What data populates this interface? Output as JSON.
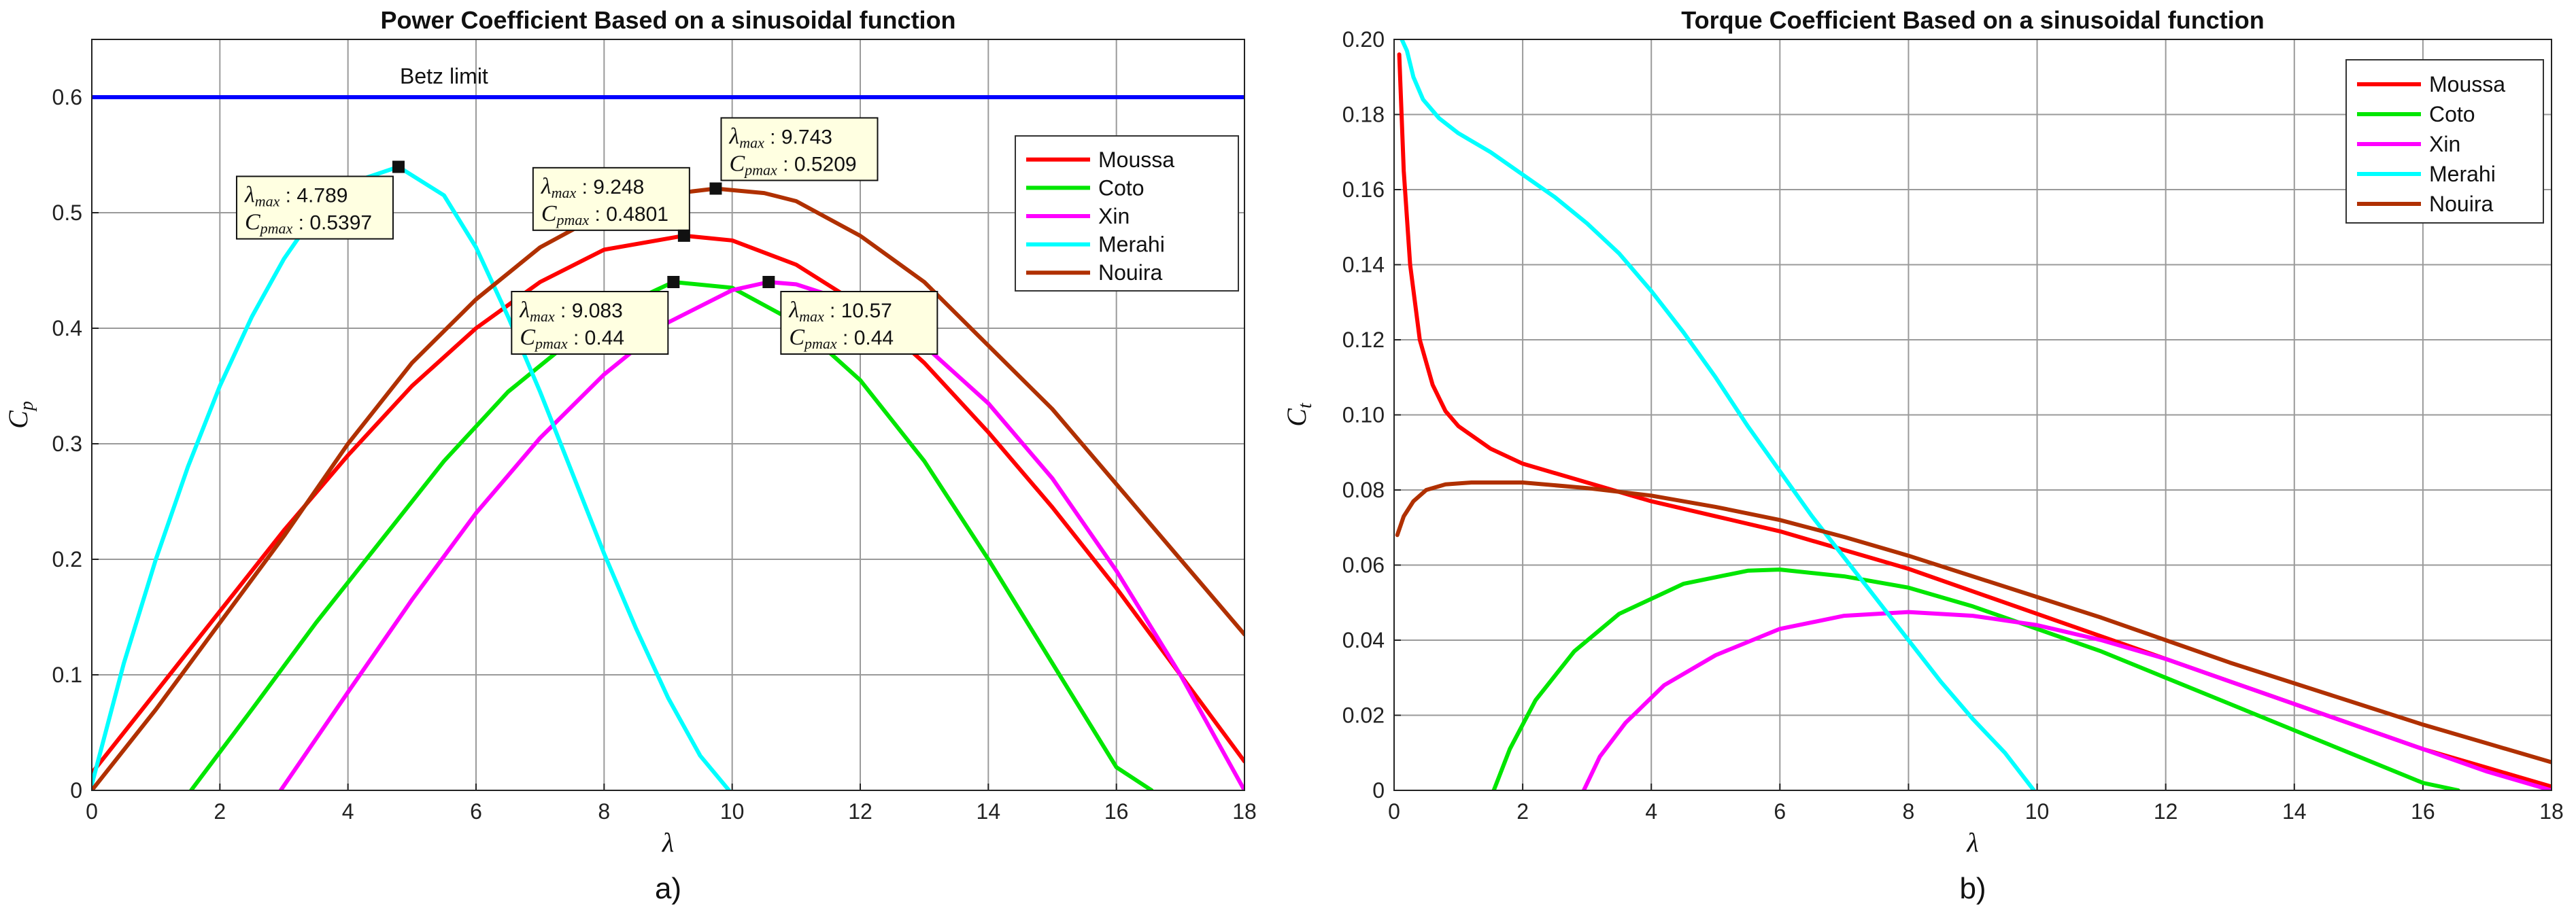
{
  "chart_data": [
    {
      "type": "line",
      "title": "Power Coefficient Based on a sinusoidal function",
      "xlabel": "λ",
      "ylabel": "C_p",
      "ylabel_main": "C",
      "ylabel_sub": "p",
      "panel_label": "a)",
      "xlim": [
        0,
        18
      ],
      "ylim": [
        0,
        0.65
      ],
      "xticks": [
        0,
        2,
        4,
        6,
        8,
        10,
        12,
        14,
        16,
        18
      ],
      "xtick_labels": [
        "0",
        "2",
        "4",
        "6",
        "8",
        "10",
        "12",
        "14",
        "16",
        "18"
      ],
      "yticks": [
        0,
        0.1,
        0.2,
        0.3,
        0.4,
        0.5,
        0.6
      ],
      "ytick_labels": [
        "0",
        "0.1",
        "0.2",
        "0.3",
        "0.4",
        "0.5",
        "0.6"
      ],
      "grid": true,
      "legend_position": "top-right",
      "reference_line": {
        "y": 0.6,
        "label": "Betz limit",
        "color": "#0000ff"
      },
      "series": [
        {
          "name": "Moussa",
          "color": "#ff0000",
          "x": [
            0,
            1,
            2,
            3,
            4,
            5,
            6,
            7,
            8,
            9.248,
            10,
            11,
            12,
            13,
            14,
            15,
            16,
            17,
            18
          ],
          "y": [
            0.015,
            0.085,
            0.155,
            0.225,
            0.29,
            0.35,
            0.4,
            0.44,
            0.468,
            0.4801,
            0.476,
            0.455,
            0.42,
            0.37,
            0.31,
            0.245,
            0.175,
            0.1,
            0.025
          ]
        },
        {
          "name": "Coto",
          "color": "#00e600",
          "x": [
            1.55,
            2.5,
            3.5,
            4.5,
            5.5,
            6.5,
            7.5,
            8.5,
            9.083,
            10,
            11,
            12,
            13,
            14,
            15,
            16,
            16.55
          ],
          "y": [
            0,
            0.07,
            0.145,
            0.215,
            0.285,
            0.345,
            0.39,
            0.425,
            0.44,
            0.435,
            0.405,
            0.355,
            0.285,
            0.2,
            0.11,
            0.02,
            0
          ]
        },
        {
          "name": "Xin",
          "color": "#ff00ff",
          "x": [
            2.95,
            4,
            5,
            6,
            7,
            8,
            9,
            10,
            10.57,
            11,
            12,
            13,
            14,
            15,
            16,
            17,
            18
          ],
          "y": [
            0,
            0.085,
            0.165,
            0.24,
            0.305,
            0.36,
            0.405,
            0.433,
            0.44,
            0.438,
            0.42,
            0.385,
            0.335,
            0.27,
            0.19,
            0.1,
            0
          ]
        },
        {
          "name": "Merahi",
          "color": "#00ffff",
          "x": [
            0,
            0.5,
            1,
            1.5,
            2,
            2.5,
            3,
            3.5,
            4,
            4.789,
            5.5,
            6,
            6.5,
            7,
            7.5,
            8,
            8.5,
            9,
            9.5,
            9.95
          ],
          "y": [
            0.005,
            0.11,
            0.2,
            0.28,
            0.35,
            0.41,
            0.46,
            0.5,
            0.525,
            0.5397,
            0.515,
            0.47,
            0.41,
            0.345,
            0.275,
            0.205,
            0.14,
            0.08,
            0.03,
            0
          ]
        },
        {
          "name": "Nouira",
          "color": "#b03000",
          "x": [
            0,
            1,
            2,
            3,
            4,
            5,
            6,
            7,
            8,
            9,
            9.743,
            10.5,
            11,
            12,
            13,
            14,
            15,
            16,
            17,
            18
          ],
          "y": [
            0,
            0.07,
            0.145,
            0.22,
            0.3,
            0.37,
            0.425,
            0.47,
            0.5,
            0.516,
            0.5209,
            0.517,
            0.51,
            0.48,
            0.44,
            0.385,
            0.33,
            0.265,
            0.2,
            0.135
          ]
        }
      ],
      "datatips": [
        {
          "x": 4.789,
          "y": 0.5397,
          "xtext": "4.789",
          "ytext": "0.5397",
          "anchor": "below-left"
        },
        {
          "x": 9.248,
          "y": 0.4801,
          "xtext": "9.248",
          "ytext": "0.4801",
          "anchor": "above-left"
        },
        {
          "x": 9.743,
          "y": 0.5209,
          "xtext": "9.743",
          "ytext": "0.5209",
          "anchor": "above-right"
        },
        {
          "x": 9.083,
          "y": 0.44,
          "xtext": "9.083",
          "ytext": "0.44",
          "anchor": "below-left"
        },
        {
          "x": 10.57,
          "y": 0.44,
          "xtext": "10.57",
          "ytext": "0.44",
          "anchor": "below-right"
        }
      ]
    },
    {
      "type": "line",
      "title": "Torque Coefficient Based on a sinusoidal function",
      "xlabel": "λ",
      "ylabel": "C_t",
      "ylabel_main": "C",
      "ylabel_sub": "t",
      "panel_label": "b)",
      "xlim": [
        0,
        18
      ],
      "ylim": [
        0,
        0.2
      ],
      "xticks": [
        0,
        2,
        4,
        6,
        8,
        10,
        12,
        14,
        16,
        18
      ],
      "xtick_labels": [
        "0",
        "2",
        "4",
        "6",
        "8",
        "10",
        "12",
        "14",
        "16",
        "18"
      ],
      "yticks": [
        0,
        0.02,
        0.04,
        0.06,
        0.08,
        0.1,
        0.12,
        0.14,
        0.16,
        0.18,
        0.2
      ],
      "ytick_labels": [
        "0",
        "0.02",
        "0.04",
        "0.06",
        "0.08",
        "0.10",
        "0.12",
        "0.14",
        "0.16",
        "0.18",
        "0.20"
      ],
      "grid": true,
      "legend_position": "top-right",
      "series": [
        {
          "name": "Moussa",
          "color": "#ff0000",
          "x": [
            0.08,
            0.15,
            0.25,
            0.4,
            0.6,
            0.8,
            1,
            1.5,
            2,
            3,
            4,
            5,
            6,
            7,
            8,
            9,
            10,
            11,
            12,
            13,
            14,
            15,
            16,
            17,
            18
          ],
          "y": [
            0.196,
            0.165,
            0.14,
            0.12,
            0.108,
            0.101,
            0.097,
            0.091,
            0.087,
            0.082,
            0.077,
            0.073,
            0.069,
            0.064,
            0.059,
            0.053,
            0.047,
            0.041,
            0.035,
            0.029,
            0.023,
            0.017,
            0.011,
            0.006,
            0.001
          ]
        },
        {
          "name": "Coto",
          "color": "#00e600",
          "x": [
            1.55,
            1.8,
            2.2,
            2.8,
            3.5,
            4.5,
            5.5,
            6,
            7,
            8,
            9,
            10,
            11,
            12,
            13,
            14,
            15,
            16,
            16.55
          ],
          "y": [
            0,
            0.011,
            0.024,
            0.037,
            0.047,
            0.055,
            0.0585,
            0.0588,
            0.057,
            0.054,
            0.049,
            0.043,
            0.037,
            0.03,
            0.023,
            0.016,
            0.009,
            0.002,
            0
          ]
        },
        {
          "name": "Xin",
          "color": "#ff00ff",
          "x": [
            2.95,
            3.2,
            3.6,
            4.2,
            5,
            6,
            7,
            8,
            9,
            10,
            11,
            12,
            13,
            14,
            15,
            16,
            17,
            18
          ],
          "y": [
            0,
            0.009,
            0.018,
            0.028,
            0.036,
            0.043,
            0.0465,
            0.0475,
            0.0465,
            0.044,
            0.04,
            0.035,
            0.029,
            0.023,
            0.017,
            0.011,
            0.005,
            0
          ]
        },
        {
          "name": "Merahi",
          "color": "#00ffff",
          "x": [
            0.12,
            0.2,
            0.3,
            0.45,
            0.7,
            1,
            1.5,
            2,
            2.5,
            3,
            3.5,
            4,
            4.5,
            5,
            5.5,
            6,
            6.5,
            7,
            7.5,
            8,
            8.5,
            9,
            9.5,
            9.95
          ],
          "y": [
            0.2,
            0.197,
            0.19,
            0.184,
            0.179,
            0.175,
            0.17,
            0.164,
            0.158,
            0.151,
            0.143,
            0.133,
            0.122,
            0.11,
            0.097,
            0.085,
            0.073,
            0.062,
            0.051,
            0.04,
            0.029,
            0.019,
            0.01,
            0
          ]
        },
        {
          "name": "Nouira",
          "color": "#b03000",
          "x": [
            0.05,
            0.15,
            0.3,
            0.5,
            0.8,
            1.2,
            2,
            3,
            4,
            5,
            6,
            7,
            8,
            9,
            10,
            11,
            12,
            13,
            14,
            15,
            16,
            17,
            18
          ],
          "y": [
            0.068,
            0.073,
            0.077,
            0.08,
            0.0815,
            0.082,
            0.082,
            0.0805,
            0.0785,
            0.0755,
            0.072,
            0.0675,
            0.0625,
            0.057,
            0.0515,
            0.046,
            0.04,
            0.034,
            0.0285,
            0.023,
            0.0175,
            0.0125,
            0.0075
          ]
        }
      ]
    }
  ]
}
